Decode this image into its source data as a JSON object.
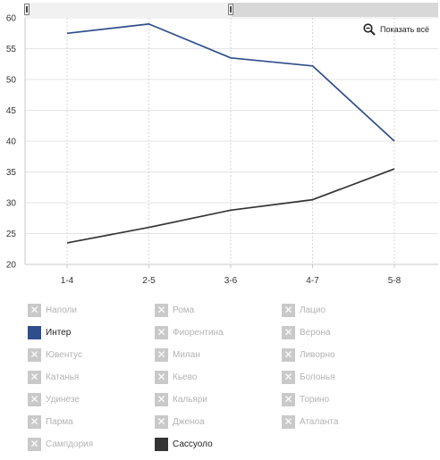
{
  "range_selector": {
    "from": 0,
    "to": 1
  },
  "controls": {
    "show_all_label": "Показать всё",
    "show_all_icon": "zoom-out-icon"
  },
  "chart_data": {
    "type": "line",
    "categories": [
      "1-4",
      "2-5",
      "3-6",
      "4-7",
      "5-8"
    ],
    "ylim": [
      20,
      60
    ],
    "y_ticks": [
      20,
      25,
      30,
      35,
      40,
      45,
      50,
      55,
      60
    ],
    "grid": {
      "horizontal": true,
      "vertical": "dashed"
    },
    "series": [
      {
        "name": "Интер",
        "color": "#2f4e8c",
        "values": [
          57.5,
          59,
          53.5,
          52.2,
          40
        ]
      },
      {
        "name": "Сассуоло",
        "color": "#333333",
        "values": [
          23.5,
          26,
          28.8,
          30.5,
          35.5
        ]
      }
    ],
    "legend": {
      "position": "bottom",
      "columns": [
        [
          {
            "label": "Наполи",
            "active": false
          },
          {
            "label": "Интер",
            "active": true,
            "color": "#2f4e8c"
          },
          {
            "label": "Ювентус",
            "active": false
          },
          {
            "label": "Катанья",
            "active": false
          },
          {
            "label": "Удинезе",
            "active": false
          },
          {
            "label": "Парма",
            "active": false
          },
          {
            "label": "Сампдория",
            "active": false
          }
        ],
        [
          {
            "label": "Рома",
            "active": false
          },
          {
            "label": "Фиорентина",
            "active": false
          },
          {
            "label": "Милан",
            "active": false
          },
          {
            "label": "Кьево",
            "active": false
          },
          {
            "label": "Кальяри",
            "active": false
          },
          {
            "label": "Дженоа",
            "active": false
          },
          {
            "label": "Сассуоло",
            "active": true,
            "color": "#333333"
          }
        ],
        [
          {
            "label": "Лацио",
            "active": false
          },
          {
            "label": "Верона",
            "active": false
          },
          {
            "label": "Ливорно",
            "active": false
          },
          {
            "label": "Болонья",
            "active": false
          },
          {
            "label": "Торино",
            "active": false
          },
          {
            "label": "Аталанта",
            "active": false
          }
        ]
      ]
    }
  }
}
